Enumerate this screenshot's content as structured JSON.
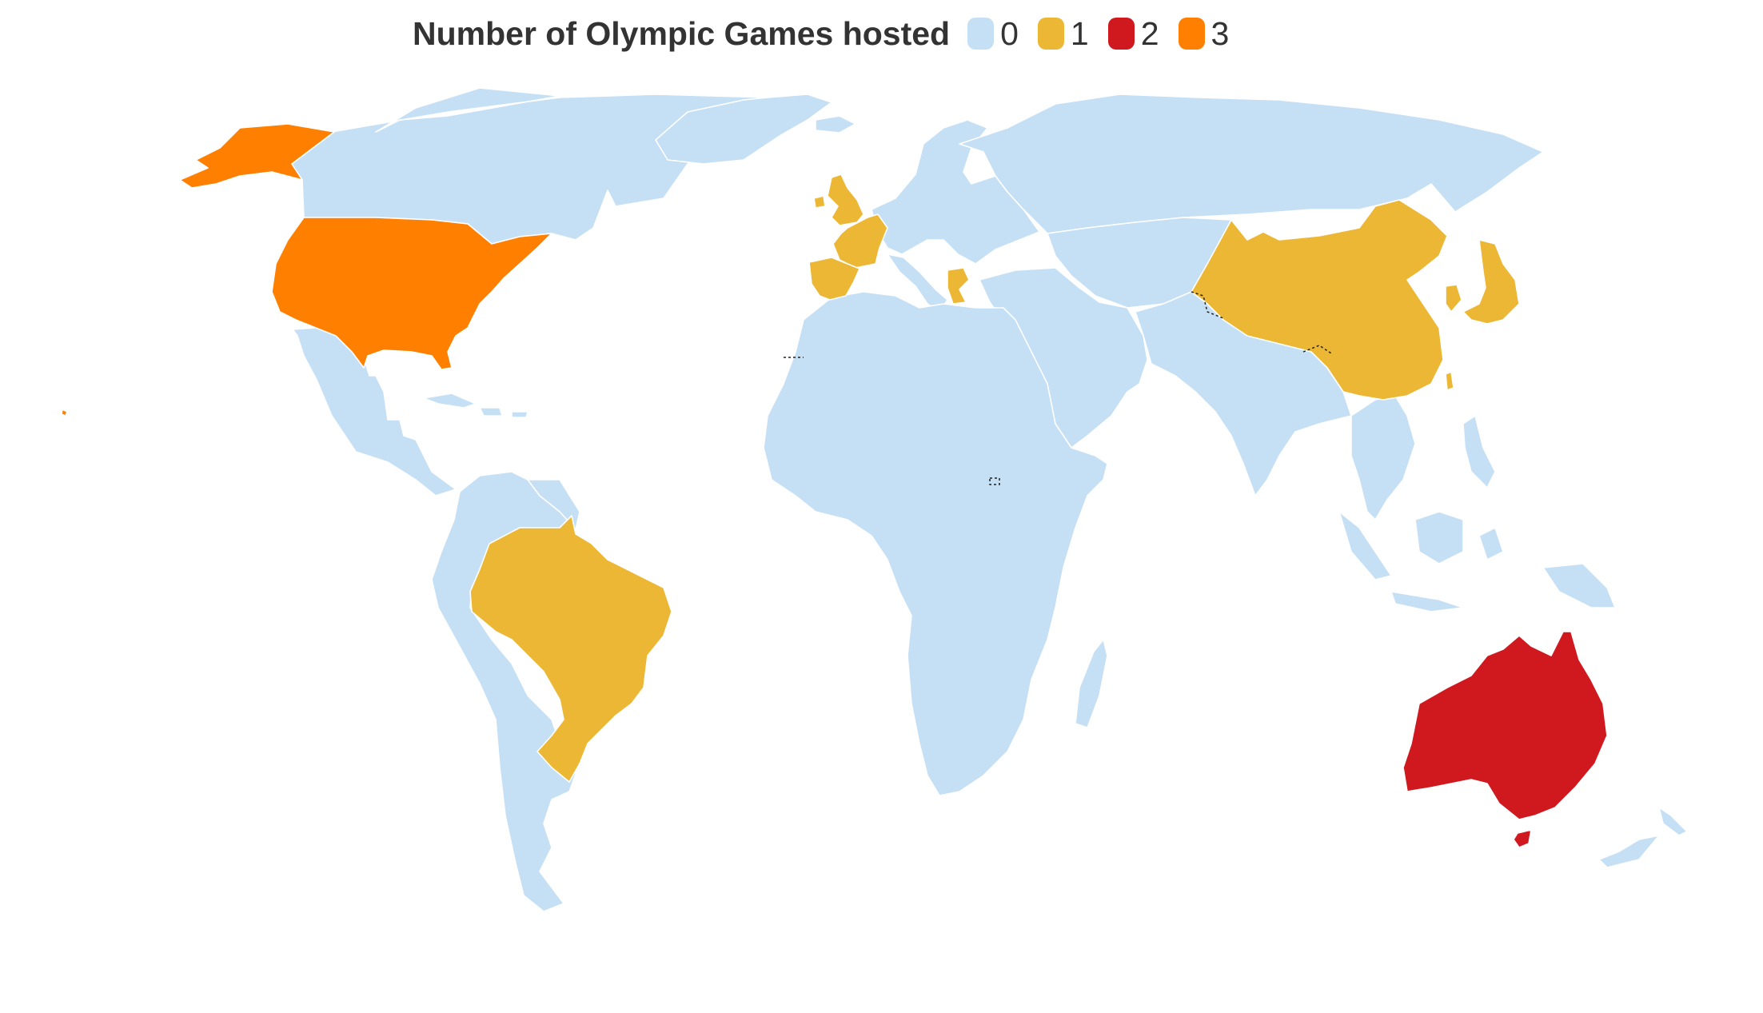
{
  "legend": {
    "title": "Number of Olympic Games hosted",
    "items": [
      {
        "label": "0",
        "color": "#c5dff5"
      },
      {
        "label": "1",
        "color": "#ebb734"
      },
      {
        "label": "2",
        "color": "#d0191f"
      },
      {
        "label": "3",
        "color": "#ff7f00"
      }
    ]
  },
  "map_data": {
    "type": "choropleth",
    "value_name": "Number of Olympic Games hosted",
    "countries": [
      {
        "name": "United States",
        "value": 3
      },
      {
        "name": "Australia",
        "value": 2
      },
      {
        "name": "Brazil",
        "value": 1
      },
      {
        "name": "United Kingdom",
        "value": 1
      },
      {
        "name": "France",
        "value": 1
      },
      {
        "name": "Spain",
        "value": 1
      },
      {
        "name": "Greece",
        "value": 1
      },
      {
        "name": "China",
        "value": 1
      },
      {
        "name": "Japan",
        "value": 1
      },
      {
        "name": "South Korea",
        "value": 1
      }
    ],
    "default_value": 0
  }
}
